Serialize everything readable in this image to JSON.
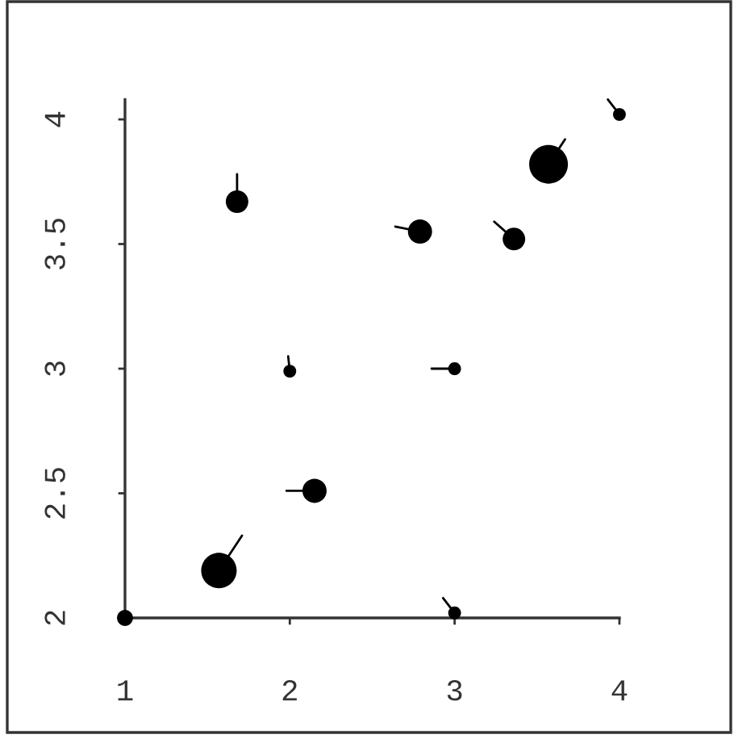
{
  "chart_data": {
    "type": "bubble",
    "xlim": [
      1,
      4
    ],
    "ylim": [
      2,
      4.08
    ],
    "xticks": [
      1,
      2,
      3,
      4
    ],
    "yticks": [
      2,
      2.5,
      3,
      3.5,
      4
    ],
    "series": [
      {
        "color": "#000000",
        "x": [
          1.0,
          1.57,
          2.15,
          2.0,
          1.68,
          2.79,
          3.0,
          3.36,
          3.57,
          4.0,
          3.0
        ],
        "values": [
          2.0,
          2.19,
          2.51,
          2.99,
          3.67,
          3.55,
          3.0,
          3.52,
          3.82,
          4.02,
          2.02
        ],
        "sizes": [
          0.17,
          0.84,
          0.39,
          0.11,
          0.34,
          0.39,
          0.11,
          0.34,
          1,
          0.11,
          0.11
        ]
      },
      {
        "type": "line",
        "color": "#000000",
        "x": [
          1.57,
          1.71
        ],
        "values": [
          2.19,
          2.33
        ]
      },
      {
        "type": "line",
        "color": "#000000",
        "x": [
          2.15,
          1.98
        ],
        "values": [
          2.51,
          2.51
        ]
      },
      {
        "type": "line",
        "color": "#000000",
        "x": [
          2.0,
          1.99
        ],
        "values": [
          2.99,
          3.05
        ]
      },
      {
        "type": "line",
        "color": "#000000",
        "x": [
          1.68,
          1.68
        ],
        "values": [
          3.67,
          3.78
        ]
      },
      {
        "type": "line",
        "color": "#000000",
        "x": [
          2.79,
          2.64
        ],
        "values": [
          3.55,
          3.57
        ]
      },
      {
        "type": "line",
        "color": "#000000",
        "x": [
          3.0,
          2.86
        ],
        "values": [
          3.0,
          3.0
        ]
      },
      {
        "type": "line",
        "color": "#000000",
        "x": [
          3.36,
          3.24
        ],
        "values": [
          3.52,
          3.59
        ]
      },
      {
        "type": "line",
        "color": "#000000",
        "x": [
          3.57,
          3.67
        ],
        "values": [
          3.82,
          3.92
        ]
      },
      {
        "type": "line",
        "color": "#000000",
        "x": [
          4.0,
          3.93
        ],
        "values": [
          4.02,
          4.08
        ]
      },
      {
        "type": "line",
        "color": "#000000",
        "x": [
          3.0,
          2.93
        ],
        "values": [
          2.02,
          2.08
        ]
      }
    ]
  }
}
